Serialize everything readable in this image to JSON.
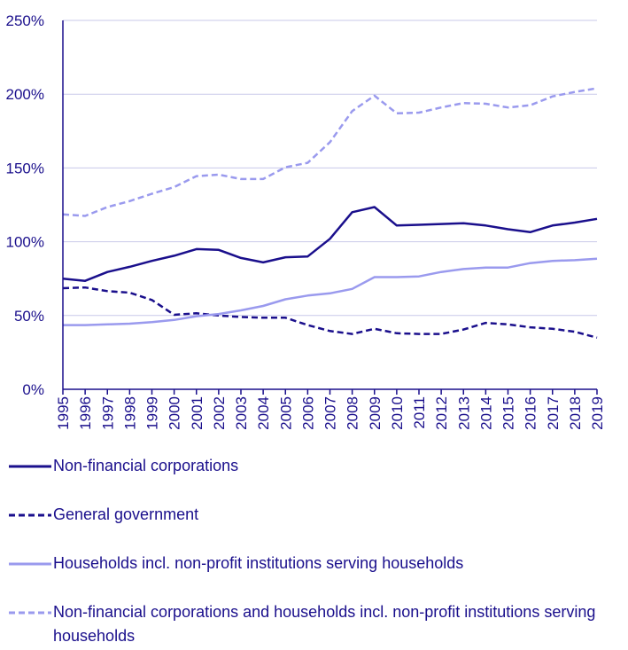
{
  "chart_data": {
    "type": "line",
    "title": "",
    "xlabel": "",
    "ylabel": "",
    "ylim": [
      0,
      250
    ],
    "y_ticks": [
      "0%",
      "50%",
      "100%",
      "150%",
      "200%",
      "250%"
    ],
    "y_tick_values": [
      0,
      50,
      100,
      150,
      200,
      250
    ],
    "categories": [
      "1995",
      "1996",
      "1997",
      "1998",
      "1999",
      "2000",
      "2001",
      "2002",
      "2003",
      "2004",
      "2005",
      "2006",
      "2007",
      "2008",
      "2009",
      "2010",
      "2011",
      "2012",
      "2013",
      "2014",
      "2015",
      "2016",
      "2017",
      "2018",
      "2019"
    ],
    "grid": true,
    "legend_position": "bottom",
    "series": [
      {
        "name": "Non-financial corporations",
        "style": "solid",
        "color": "#1a0f8c",
        "values": [
          75,
          73.5,
          79.5,
          83,
          87,
          90.5,
          95,
          94.5,
          89,
          86,
          89.5,
          90,
          102,
          120,
          123.5,
          111,
          111.5,
          112,
          112.5,
          111,
          108.5,
          106.5,
          111,
          113,
          115.5
        ]
      },
      {
        "name": "General government",
        "style": "dashed",
        "color": "#1a0f8c",
        "values": [
          68.5,
          69,
          66.5,
          65.5,
          60.5,
          50.5,
          51.5,
          50,
          49,
          48.5,
          48.5,
          43.5,
          39.5,
          37.5,
          41,
          38,
          37.5,
          37.5,
          40.5,
          45,
          44,
          42,
          41,
          39,
          35
        ]
      },
      {
        "name": "Households incl. non-profit institutions serving households",
        "style": "solid",
        "color": "#9a9aee",
        "values": [
          43.5,
          43.5,
          44,
          44.5,
          45.5,
          47,
          49.5,
          51,
          53.5,
          56.5,
          61,
          63.5,
          65,
          68,
          76,
          76,
          76.5,
          79.5,
          81.5,
          82.5,
          82.5,
          85.5,
          87,
          87.5,
          88.5
        ]
      },
      {
        "name": "Non-financial corporations and households incl. non-profit institutions serving households",
        "style": "dashed",
        "color": "#9a9aee",
        "values": [
          118.5,
          117.5,
          123.5,
          127.5,
          132.5,
          137,
          144.5,
          145.5,
          142.5,
          142.5,
          150.5,
          153.5,
          167.5,
          188.5,
          199,
          187,
          187.5,
          191,
          194,
          193.5,
          191,
          192.5,
          198.5,
          201.5,
          204
        ]
      }
    ]
  }
}
